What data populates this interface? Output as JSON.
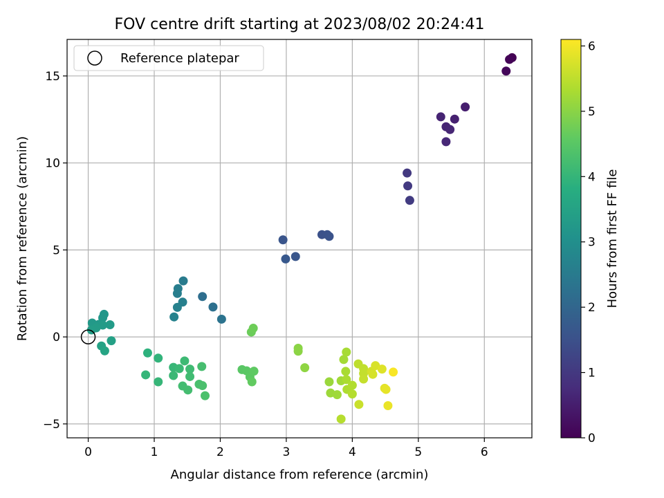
{
  "chart_data": {
    "type": "scatter",
    "title": "FOV centre drift starting at 2023/08/02 20:24:41",
    "xlabel": "Angular distance from reference (arcmin)",
    "ylabel": "Rotation from reference (arcmin)",
    "xlim": [
      -0.32,
      6.72
    ],
    "ylim": [
      -5.8,
      17.1
    ],
    "xticks": [
      0,
      1,
      2,
      3,
      4,
      5,
      6
    ],
    "yticks": [
      -5,
      0,
      5,
      10,
      15
    ],
    "grid": true,
    "legend": {
      "position": "top-left",
      "entries": [
        "Reference platepar"
      ]
    },
    "reference_point": {
      "x": 0,
      "y": 0
    },
    "colorbar": {
      "label": "Hours from first FF file",
      "range": [
        0,
        6.1
      ],
      "ticks": [
        0,
        1,
        2,
        3,
        4,
        5,
        6
      ],
      "colormap": "viridis"
    },
    "points": [
      {
        "x": 6.42,
        "y": 16.05,
        "t": 0.0
      },
      {
        "x": 6.38,
        "y": 15.95,
        "t": 0.05
      },
      {
        "x": 6.33,
        "y": 15.28,
        "t": 0.1
      },
      {
        "x": 5.71,
        "y": 13.22,
        "t": 0.5
      },
      {
        "x": 5.55,
        "y": 12.52,
        "t": 0.55
      },
      {
        "x": 5.34,
        "y": 12.65,
        "t": 0.6
      },
      {
        "x": 5.42,
        "y": 12.08,
        "t": 0.62
      },
      {
        "x": 5.48,
        "y": 11.92,
        "t": 0.65
      },
      {
        "x": 5.42,
        "y": 11.22,
        "t": 0.68
      },
      {
        "x": 4.83,
        "y": 9.42,
        "t": 1.0
      },
      {
        "x": 4.84,
        "y": 8.68,
        "t": 1.03
      },
      {
        "x": 4.87,
        "y": 7.85,
        "t": 1.06
      },
      {
        "x": 3.54,
        "y": 5.88,
        "t": 1.5
      },
      {
        "x": 3.62,
        "y": 5.88,
        "t": 1.52
      },
      {
        "x": 3.65,
        "y": 5.78,
        "t": 1.55
      },
      {
        "x": 2.95,
        "y": 5.58,
        "t": 1.6
      },
      {
        "x": 3.14,
        "y": 4.62,
        "t": 1.63
      },
      {
        "x": 2.99,
        "y": 4.48,
        "t": 1.66
      },
      {
        "x": 1.73,
        "y": 2.32,
        "t": 2.2
      },
      {
        "x": 1.89,
        "y": 1.72,
        "t": 2.25
      },
      {
        "x": 2.02,
        "y": 1.02,
        "t": 2.3
      },
      {
        "x": 1.44,
        "y": 3.22,
        "t": 2.5
      },
      {
        "x": 1.36,
        "y": 2.78,
        "t": 2.55
      },
      {
        "x": 1.35,
        "y": 2.5,
        "t": 2.58
      },
      {
        "x": 1.43,
        "y": 2.0,
        "t": 2.62
      },
      {
        "x": 1.35,
        "y": 1.7,
        "t": 2.65
      },
      {
        "x": 1.3,
        "y": 1.15,
        "t": 2.68
      },
      {
        "x": 0.24,
        "y": 1.3,
        "t": 3.2
      },
      {
        "x": 0.22,
        "y": 1.1,
        "t": 3.22
      },
      {
        "x": 0.06,
        "y": 0.8,
        "t": 3.25
      },
      {
        "x": 0.16,
        "y": 0.72,
        "t": 3.27
      },
      {
        "x": 0.22,
        "y": 0.68,
        "t": 3.3
      },
      {
        "x": 0.33,
        "y": 0.7,
        "t": 3.32
      },
      {
        "x": 0.12,
        "y": 0.52,
        "t": 3.35
      },
      {
        "x": 0.05,
        "y": 0.4,
        "t": 3.37
      },
      {
        "x": 0.35,
        "y": -0.22,
        "t": 3.45
      },
      {
        "x": 0.2,
        "y": -0.52,
        "t": 3.5
      },
      {
        "x": 0.25,
        "y": -0.8,
        "t": 3.55
      },
      {
        "x": 0.9,
        "y": -0.92,
        "t": 3.9
      },
      {
        "x": 1.06,
        "y": -1.22,
        "t": 3.95
      },
      {
        "x": 0.87,
        "y": -2.18,
        "t": 4.0
      },
      {
        "x": 1.06,
        "y": -2.58,
        "t": 4.02
      },
      {
        "x": 1.29,
        "y": -1.75,
        "t": 4.05
      },
      {
        "x": 1.29,
        "y": -2.22,
        "t": 4.08
      },
      {
        "x": 1.38,
        "y": -1.82,
        "t": 4.1
      },
      {
        "x": 1.46,
        "y": -1.38,
        "t": 4.12
      },
      {
        "x": 1.54,
        "y": -1.85,
        "t": 4.15
      },
      {
        "x": 1.54,
        "y": -2.28,
        "t": 4.17
      },
      {
        "x": 1.43,
        "y": -2.82,
        "t": 4.2
      },
      {
        "x": 1.51,
        "y": -3.05,
        "t": 4.22
      },
      {
        "x": 1.72,
        "y": -1.7,
        "t": 4.25
      },
      {
        "x": 1.68,
        "y": -2.72,
        "t": 4.28
      },
      {
        "x": 1.73,
        "y": -2.8,
        "t": 4.3
      },
      {
        "x": 1.77,
        "y": -3.38,
        "t": 4.32
      },
      {
        "x": 2.33,
        "y": -1.88,
        "t": 4.5
      },
      {
        "x": 2.4,
        "y": -1.95,
        "t": 4.52
      },
      {
        "x": 2.45,
        "y": -2.3,
        "t": 4.55
      },
      {
        "x": 2.51,
        "y": -1.97,
        "t": 4.57
      },
      {
        "x": 2.48,
        "y": -2.58,
        "t": 4.6
      },
      {
        "x": 2.47,
        "y": 0.28,
        "t": 4.7
      },
      {
        "x": 2.5,
        "y": 0.5,
        "t": 4.72
      },
      {
        "x": 3.18,
        "y": -0.65,
        "t": 5.0
      },
      {
        "x": 3.18,
        "y": -0.82,
        "t": 5.02
      },
      {
        "x": 3.28,
        "y": -1.77,
        "t": 5.05
      },
      {
        "x": 3.65,
        "y": -2.58,
        "t": 5.15
      },
      {
        "x": 3.67,
        "y": -3.22,
        "t": 5.18
      },
      {
        "x": 3.77,
        "y": -3.32,
        "t": 5.2
      },
      {
        "x": 3.83,
        "y": -2.52,
        "t": 5.22
      },
      {
        "x": 3.87,
        "y": -1.3,
        "t": 5.25
      },
      {
        "x": 3.91,
        "y": -0.87,
        "t": 5.28
      },
      {
        "x": 3.9,
        "y": -1.98,
        "t": 5.3
      },
      {
        "x": 3.91,
        "y": -2.45,
        "t": 5.32
      },
      {
        "x": 3.92,
        "y": -3.02,
        "t": 5.35
      },
      {
        "x": 4.0,
        "y": -2.78,
        "t": 5.38
      },
      {
        "x": 4.0,
        "y": -3.28,
        "t": 5.4
      },
      {
        "x": 3.83,
        "y": -4.72,
        "t": 5.42
      },
      {
        "x": 4.09,
        "y": -1.55,
        "t": 5.5
      },
      {
        "x": 4.17,
        "y": -1.82,
        "t": 5.52
      },
      {
        "x": 4.17,
        "y": -2.1,
        "t": 5.55
      },
      {
        "x": 4.17,
        "y": -2.42,
        "t": 5.57
      },
      {
        "x": 4.1,
        "y": -3.88,
        "t": 5.6
      },
      {
        "x": 4.29,
        "y": -1.98,
        "t": 5.7
      },
      {
        "x": 4.31,
        "y": -2.15,
        "t": 5.72
      },
      {
        "x": 4.35,
        "y": -1.65,
        "t": 5.75
      },
      {
        "x": 4.45,
        "y": -1.85,
        "t": 5.8
      },
      {
        "x": 4.49,
        "y": -2.95,
        "t": 5.85
      },
      {
        "x": 4.51,
        "y": -3.02,
        "t": 5.88
      },
      {
        "x": 4.54,
        "y": -3.95,
        "t": 5.92
      },
      {
        "x": 4.62,
        "y": -2.02,
        "t": 6.05
      }
    ]
  }
}
